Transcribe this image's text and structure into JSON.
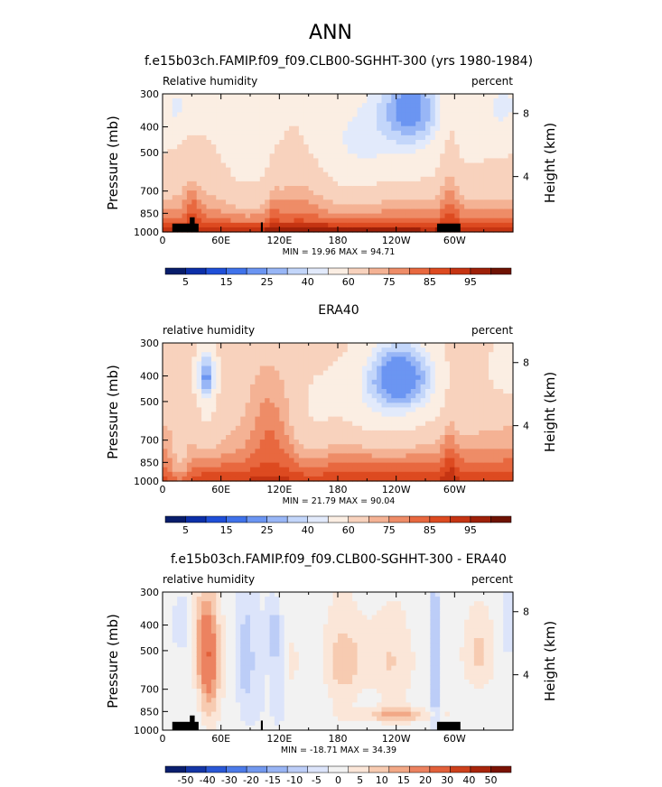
{
  "page": {
    "title": "ANN"
  },
  "colors": {
    "pos_scale": [
      "#081d6b",
      "#0c2fa8",
      "#1f4fd8",
      "#3f72ea",
      "#6b95f2",
      "#98b6f6",
      "#c3d6fa",
      "#e2eafb",
      "#fbeee3",
      "#f8d2bd",
      "#f4b294",
      "#ee8c67",
      "#e8683f",
      "#dd4a20",
      "#c53412",
      "#9e2008",
      "#6e1203"
    ],
    "diff_scale": [
      "#0a1f6e",
      "#1436a6",
      "#2a58d6",
      "#4c7be9",
      "#7298ee",
      "#98b4f4",
      "#bccdf7",
      "#dce4fa",
      "#f2f2f2",
      "#fbe6d8",
      "#f7cbb1",
      "#f2a886",
      "#ec8260",
      "#e2603a",
      "#cd401b",
      "#a8250b",
      "#7a1204"
    ],
    "land": "#000000"
  },
  "chart_data": [
    {
      "type": "heatmap",
      "title": "f.e15b03ch.FAMIP.f09_f09.CLB00-SGHHT-300 (yrs 1980-1984)",
      "left_label": "Relative humidity",
      "right_label": "percent",
      "ylabel": "Pressure (mb)",
      "ylabel_right": "Height (km)",
      "x_ticks": [
        "0",
        "60E",
        "120E",
        "180",
        "120W",
        "60W"
      ],
      "y_ticks": [
        "300",
        "400",
        "500",
        "700",
        "850",
        "1000"
      ],
      "y_ticks_right": [
        "8",
        "4"
      ],
      "ylim": [
        1000,
        300
      ],
      "xlim": [
        0,
        360
      ],
      "stats": "MIN =   19.96  MAX =   94.71",
      "colorbar_labels": [
        "5",
        "15",
        "25",
        "40",
        "60",
        "75",
        "85",
        "95"
      ],
      "contour_levels": [
        0,
        5,
        10,
        15,
        20,
        25,
        30,
        35,
        40,
        50,
        60,
        65,
        70,
        75,
        80,
        85,
        90,
        95
      ],
      "min": 19.96,
      "max": 94.71,
      "mask": true
    },
    {
      "type": "heatmap",
      "title": "ERA40",
      "left_label": "relative humidity",
      "right_label": "percent",
      "ylabel": "Pressure (mb)",
      "ylabel_right": "Height (km)",
      "x_ticks": [
        "0",
        "60E",
        "120E",
        "180",
        "120W",
        "60W"
      ],
      "y_ticks": [
        "300",
        "400",
        "500",
        "700",
        "850",
        "1000"
      ],
      "y_ticks_right": [
        "8",
        "4"
      ],
      "ylim": [
        1000,
        300
      ],
      "xlim": [
        0,
        360
      ],
      "stats": "MIN =   21.79  MAX =   90.04",
      "colorbar_labels": [
        "5",
        "15",
        "25",
        "40",
        "60",
        "75",
        "85",
        "95"
      ],
      "contour_levels": [
        0,
        5,
        10,
        15,
        20,
        25,
        30,
        35,
        40,
        50,
        60,
        65,
        70,
        75,
        80,
        85,
        90,
        95
      ],
      "min": 21.79,
      "max": 90.04,
      "mask": false
    },
    {
      "type": "heatmap",
      "title": "f.e15b03ch.FAMIP.f09_f09.CLB00-SGHHT-300 - ERA40",
      "left_label": "relative humidity",
      "right_label": "percent",
      "ylabel": "Pressure (mb)",
      "ylabel_right": "Height (km)",
      "x_ticks": [
        "0",
        "60E",
        "120E",
        "180",
        "120W",
        "60W"
      ],
      "y_ticks": [
        "300",
        "400",
        "500",
        "700",
        "850",
        "1000"
      ],
      "y_ticks_right": [
        "8",
        "4"
      ],
      "ylim": [
        1000,
        300
      ],
      "xlim": [
        0,
        360
      ],
      "stats": "MIN = -18.71  MAX =   34.39",
      "colorbar_labels": [
        "-50",
        "-40",
        "-30",
        "-20",
        "-15",
        "-10",
        "-5",
        "0",
        "5",
        "10",
        "15",
        "20",
        "30",
        "40",
        "50"
      ],
      "contour_levels": [
        -60,
        -50,
        -40,
        -30,
        -20,
        -15,
        -10,
        -5,
        0,
        5,
        10,
        15,
        20,
        30,
        40,
        50,
        60
      ],
      "min": -18.71,
      "max": 34.39,
      "mask": true
    }
  ]
}
